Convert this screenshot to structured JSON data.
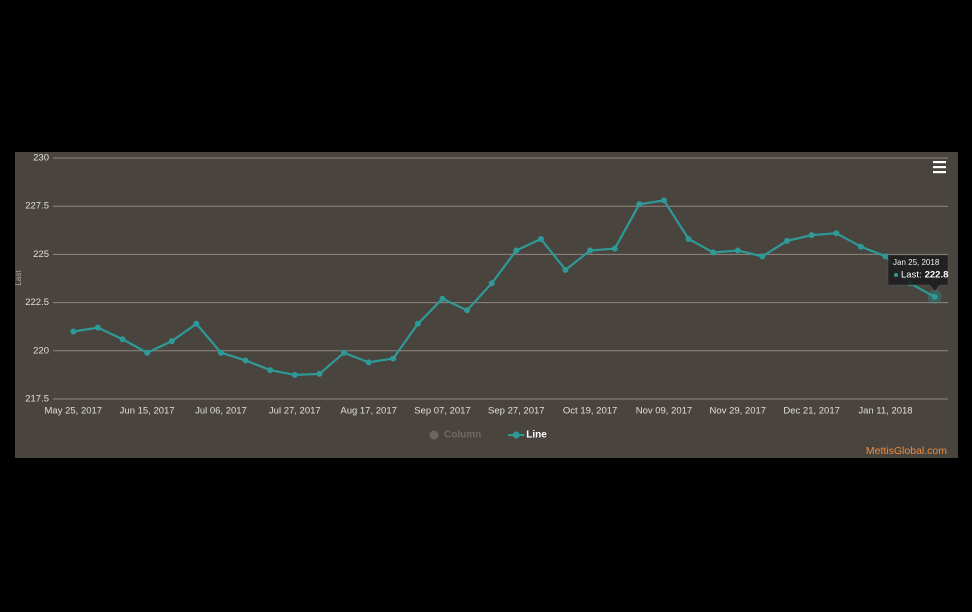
{
  "chart_data": {
    "type": "line",
    "y_label": "Last",
    "categories": [
      "May 25, 2017",
      null,
      null,
      "Jun 15, 2017",
      null,
      null,
      "Jul 06, 2017",
      null,
      null,
      "Jul 27, 2017",
      null,
      null,
      "Aug 17, 2017",
      null,
      null,
      "Sep 07, 2017",
      null,
      null,
      "Sep 27, 2017",
      null,
      null,
      "Oct 19, 2017",
      null,
      null,
      "Nov 09, 2017",
      null,
      null,
      "Nov 29, 2017",
      null,
      null,
      "Dec 21, 2017",
      null,
      null,
      "Jan 11, 2018",
      null,
      null
    ],
    "series": [
      {
        "name": "Column",
        "color": "#6b6661",
        "visible": false
      },
      {
        "name": "Line",
        "color": "#2e9a97",
        "values": [
          221.0,
          221.2,
          220.6,
          219.9,
          220.5,
          221.4,
          219.9,
          219.5,
          219.0,
          218.75,
          218.8,
          219.9,
          219.4,
          219.6,
          221.4,
          222.7,
          222.1,
          223.5,
          225.2,
          225.8,
          224.2,
          225.2,
          225.3,
          227.6,
          227.8,
          225.8,
          225.1,
          225.2,
          224.9,
          225.7,
          226.0,
          226.1,
          225.4,
          224.9,
          223.5,
          222.8
        ]
      }
    ],
    "ylim": [
      217.5,
      230
    ],
    "yticks": [
      217.5,
      220,
      222.5,
      225,
      227.5,
      230
    ],
    "grid": true,
    "tooltip": {
      "date": "Jan 25, 2018",
      "label": "Last:"
    },
    "credit": "MettisGlobal.com"
  }
}
